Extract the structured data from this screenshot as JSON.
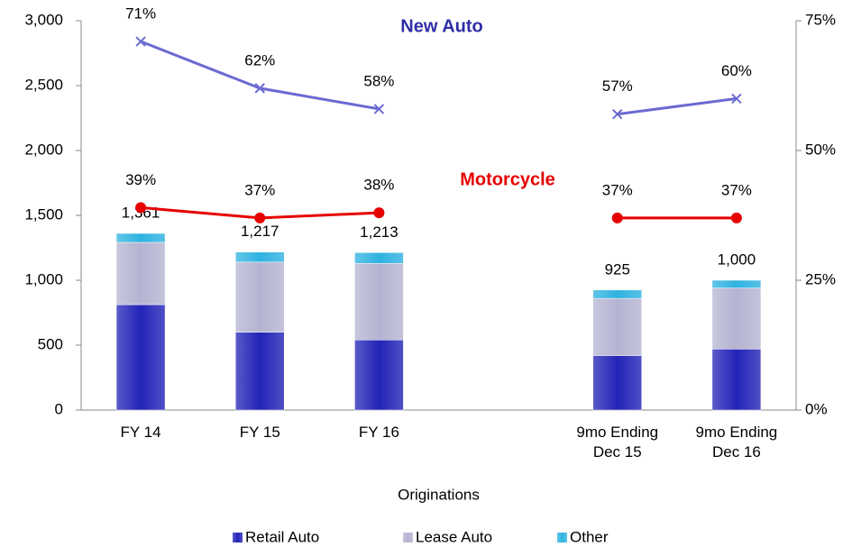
{
  "chart_data": {
    "type": "stacked-bar-line",
    "x_label": "Originations",
    "categories": [
      "FY 14",
      "FY 15",
      "FY 16",
      null,
      "9mo Ending Dec 15",
      "9mo Ending Dec 16"
    ],
    "series": [
      {
        "name": "Retail Auto",
        "color": "#2323b8",
        "values": [
          812,
          600,
          540,
          null,
          420,
          470
        ]
      },
      {
        "name": "Lease Auto",
        "color": "#b4b4d2",
        "values": [
          480,
          540,
          590,
          null,
          440,
          470
        ]
      },
      {
        "name": "Other",
        "color": "#2fb2e0",
        "values": [
          69,
          77,
          83,
          null,
          65,
          60
        ]
      },
      {
        "name": "New Auto",
        "type": "line",
        "axis": "y2",
        "color": "#6a6ad2",
        "marker": "x",
        "values": [
          71,
          62,
          58,
          null,
          57,
          60
        ],
        "value_labels": [
          "71%",
          "62%",
          "58%",
          null,
          "57%",
          "60%"
        ]
      },
      {
        "name": "Motorcycle",
        "type": "line",
        "axis": "y2",
        "color": "#e60000",
        "marker": "circle",
        "values": [
          39,
          37,
          38,
          null,
          37,
          37
        ],
        "value_labels": [
          "39%",
          "37%",
          "38%",
          null,
          "37%",
          "37%"
        ]
      }
    ],
    "totals": {
      "values": [
        1361,
        1217,
        1213,
        null,
        925,
        1000
      ],
      "value_labels": [
        "1,361",
        "1,217",
        "1,213",
        null,
        "925",
        "1,000"
      ]
    },
    "ylim": [
      0,
      3000
    ],
    "yticks": [
      0,
      500,
      {
        "value": 1000,
        "label": "1,000"
      },
      {
        "value": 1500,
        "label": "1,500"
      },
      {
        "value": 2000,
        "label": "2,000"
      },
      {
        "value": 2500,
        "label": "2,500"
      },
      {
        "value": 3000,
        "label": "3,000"
      }
    ],
    "y2lim": [
      0,
      75
    ],
    "y2ticks": [
      {
        "value": 0,
        "label": "0%"
      },
      {
        "value": 25,
        "label": "25%"
      },
      {
        "value": 50,
        "label": "50%"
      },
      {
        "value": 75,
        "label": "75%"
      }
    ],
    "legend": "bottom",
    "grid": false
  }
}
